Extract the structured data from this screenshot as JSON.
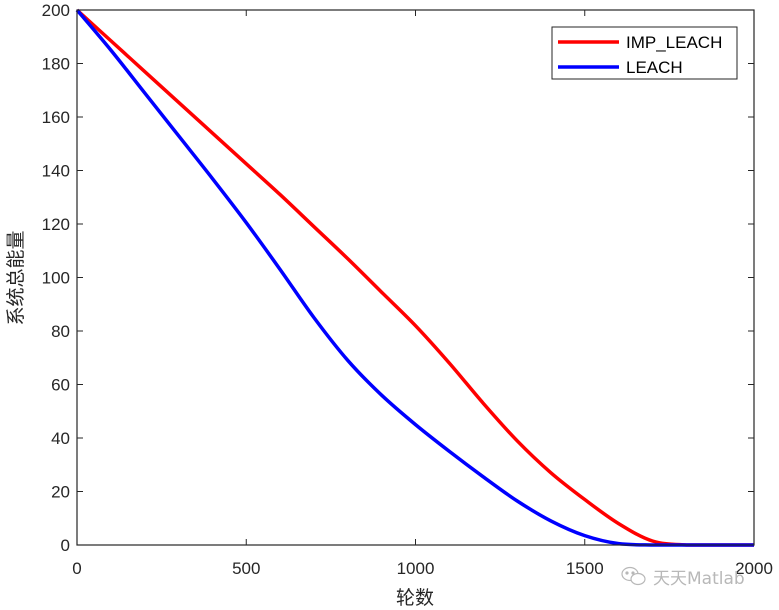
{
  "chart_data": {
    "type": "line",
    "title": "",
    "xlabel": "轮数",
    "ylabel": "系统总能量",
    "xlim": [
      0,
      2000
    ],
    "ylim": [
      0,
      200
    ],
    "xticks": [
      0,
      500,
      1000,
      1500,
      2000
    ],
    "yticks": [
      0,
      20,
      40,
      60,
      80,
      100,
      120,
      140,
      160,
      180,
      200
    ],
    "grid": false,
    "legend_position": "northeast",
    "series": [
      {
        "name": "IMP_LEACH",
        "color": "#ff0000",
        "x": [
          0,
          100,
          200,
          300,
          400,
          500,
          600,
          700,
          800,
          900,
          1000,
          1100,
          1200,
          1300,
          1400,
          1500,
          1600,
          1700,
          1800,
          1900,
          2000
        ],
        "values": [
          200,
          188.5,
          177,
          165.5,
          154,
          142.5,
          131,
          119,
          107,
          94.5,
          82,
          68,
          53,
          39,
          27,
          17,
          8,
          1.5,
          0,
          0,
          0
        ]
      },
      {
        "name": "LEACH",
        "color": "#0000ff",
        "x": [
          0,
          100,
          200,
          300,
          400,
          500,
          600,
          700,
          800,
          900,
          1000,
          1100,
          1200,
          1300,
          1400,
          1500,
          1600,
          1700,
          1800,
          1900,
          2000
        ],
        "values": [
          200,
          185,
          169,
          153,
          137,
          120.5,
          103,
          85,
          69,
          56,
          45,
          35,
          25.5,
          16.5,
          9,
          3.5,
          0.5,
          0,
          0,
          0,
          0
        ]
      }
    ]
  },
  "watermark": {
    "text": "天天Matlab",
    "icon": "wechat-icon"
  }
}
